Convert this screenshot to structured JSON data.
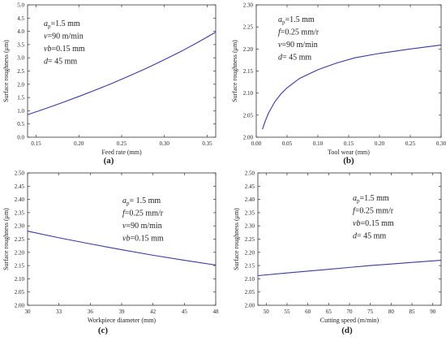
{
  "figure": {
    "panels": [
      {
        "label": "(a)",
        "chart_data": {
          "type": "line",
          "xlabel": "Feed rate (mm)",
          "ylabel": "Surface roughness (μm)",
          "xlim": [
            0.14,
            0.36
          ],
          "ylim": [
            0.0,
            5.0
          ],
          "xticks": [
            0.15,
            0.2,
            0.25,
            0.3,
            0.35
          ],
          "xtick_labels": [
            "0.15",
            "0.20",
            "0.25",
            "0.30",
            "0.35"
          ],
          "yticks": [
            0.0,
            0.5,
            1.0,
            1.5,
            2.0,
            2.5,
            3.0,
            3.5,
            4.0,
            4.5,
            5.0
          ],
          "ytick_labels": [
            "0.0",
            "0.5",
            "1.0",
            "1.5",
            "2.0",
            "2.5",
            "3.0",
            "3.5",
            "4.0",
            "4.5",
            "5.0"
          ],
          "params": [
            {
              "sym": "a",
              "sub": "p",
              "rest": "=1.5 mm"
            },
            {
              "sym": "v",
              "sub": "",
              "rest": "=90 m/min"
            },
            {
              "sym": "vb",
              "sub": "",
              "rest": "=0.15 mm"
            },
            {
              "sym": "d",
              "sub": "",
              "rest": "= 45 mm"
            }
          ],
          "series": [
            {
              "x": [
                0.14,
                0.16,
                0.18,
                0.2,
                0.22,
                0.24,
                0.26,
                0.28,
                0.3,
                0.32,
                0.34,
                0.36
              ],
              "y": [
                0.85,
                1.07,
                1.3,
                1.54,
                1.79,
                2.05,
                2.33,
                2.62,
                2.93,
                3.25,
                3.6,
                3.97
              ]
            }
          ]
        }
      },
      {
        "label": "(b)",
        "chart_data": {
          "type": "line",
          "xlabel": "Tool wear (mm)",
          "ylabel": "Surface roughness (μm)",
          "xlim": [
            0.0,
            0.3
          ],
          "ylim": [
            2.0,
            2.3
          ],
          "xticks": [
            0.0,
            0.05,
            0.1,
            0.15,
            0.2,
            0.25,
            0.3
          ],
          "xtick_labels": [
            "0.00",
            "0.05",
            "0.10",
            "0.15",
            "0.20",
            "0.25",
            "0.30"
          ],
          "yticks": [
            2.0,
            2.05,
            2.1,
            2.15,
            2.2,
            2.25,
            2.3
          ],
          "ytick_labels": [
            "2.00",
            "2.05",
            "2.10",
            "2.15",
            "2.20",
            "2.25",
            "2.30"
          ],
          "params": [
            {
              "sym": "a",
              "sub": "p",
              "rest": "=1.5 mm"
            },
            {
              "sym": "f",
              "sub": "",
              "rest": "=0.25 mm/r"
            },
            {
              "sym": "v",
              "sub": "",
              "rest": "=90 m/min"
            },
            {
              "sym": "d",
              "sub": "",
              "rest": "= 45 mm"
            }
          ],
          "series": [
            {
              "x": [
                0.01,
                0.015,
                0.02,
                0.03,
                0.04,
                0.05,
                0.07,
                0.1,
                0.13,
                0.16,
                0.2,
                0.25,
                0.3
              ],
              "y": [
                2.018,
                2.038,
                2.055,
                2.08,
                2.098,
                2.112,
                2.133,
                2.153,
                2.168,
                2.18,
                2.19,
                2.2,
                2.209
              ]
            }
          ]
        }
      },
      {
        "label": "(c)",
        "chart_data": {
          "type": "line",
          "xlabel": "Workpiece diameter (mm)",
          "ylabel": "Surface roughness (μm)",
          "xlim": [
            30,
            48
          ],
          "ylim": [
            2.0,
            2.5
          ],
          "xticks": [
            30,
            33,
            36,
            39,
            42,
            45,
            48
          ],
          "xtick_labels": [
            "30",
            "33",
            "36",
            "39",
            "42",
            "45",
            "48"
          ],
          "yticks": [
            2.0,
            2.05,
            2.1,
            2.15,
            2.2,
            2.25,
            2.3,
            2.35,
            2.4,
            2.45,
            2.5
          ],
          "ytick_labels": [
            "2.00",
            "2.05",
            "2.10",
            "2.15",
            "2.20",
            "2.25",
            "2.30",
            "2.35",
            "2.40",
            "2.45",
            "2.50"
          ],
          "params": [
            {
              "sym": "a",
              "sub": "p",
              "rest": "= 1.5 mm"
            },
            {
              "sym": "f",
              "sub": "",
              "rest": "=0.25 mm/r"
            },
            {
              "sym": "v",
              "sub": "",
              "rest": "=90 m/min"
            },
            {
              "sym": "vb",
              "sub": "",
              "rest": "=0.15 mm"
            }
          ],
          "series": [
            {
              "x": [
                30,
                33,
                36,
                39,
                42,
                45,
                48
              ],
              "y": [
                2.28,
                2.255,
                2.232,
                2.21,
                2.189,
                2.17,
                2.152
              ]
            }
          ]
        }
      },
      {
        "label": "(d)",
        "chart_data": {
          "type": "line",
          "xlabel": "Cutting speed (m/min)",
          "ylabel": "Surface roughness (μm)",
          "xlim": [
            48,
            92
          ],
          "ylim": [
            2.0,
            2.5
          ],
          "xticks": [
            50,
            55,
            60,
            65,
            70,
            75,
            80,
            85,
            90
          ],
          "xtick_labels": [
            "50",
            "55",
            "60",
            "65",
            "70",
            "75",
            "80",
            "85",
            "90"
          ],
          "yticks": [
            2.0,
            2.05,
            2.1,
            2.15,
            2.2,
            2.25,
            2.3,
            2.35,
            2.4,
            2.45,
            2.5
          ],
          "ytick_labels": [
            "2.00",
            "2.05",
            "2.10",
            "2.15",
            "2.20",
            "2.25",
            "2.30",
            "2.35",
            "2.40",
            "2.45",
            "2.50"
          ],
          "params": [
            {
              "sym": "a",
              "sub": "p",
              "rest": "=1.5 mm"
            },
            {
              "sym": "f",
              "sub": "",
              "rest": "=0.25 mm/r"
            },
            {
              "sym": "vb",
              "sub": "",
              "rest": "=0.15 mm"
            },
            {
              "sym": "d",
              "sub": "",
              "rest": "= 45 mm"
            }
          ],
          "series": [
            {
              "x": [
                48,
                55,
                60,
                65,
                70,
                75,
                80,
                85,
                92
              ],
              "y": [
                2.112,
                2.122,
                2.129,
                2.136,
                2.143,
                2.15,
                2.156,
                2.162,
                2.17
              ]
            }
          ]
        }
      }
    ],
    "colors": {
      "line": "#3a3a9e",
      "axis": "#333333",
      "text": "#222222"
    }
  }
}
